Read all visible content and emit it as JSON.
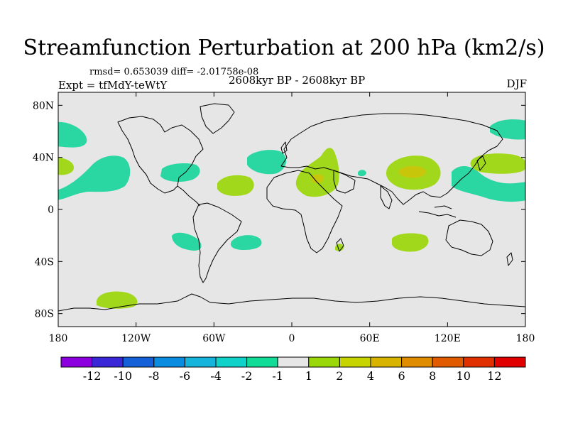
{
  "title": "Streamfunction Perturbation at 200 hPa (km2/s)",
  "stats_line": "rmsd= 0.653039 diff= -2.01758e-08",
  "experiment": "Expt = tfMdY-teWtY",
  "period": "2608kyr BP - 2608kyr BP",
  "season": "DJF",
  "map": {
    "lat_ticks": [
      {
        "lat": 80,
        "label": "80N"
      },
      {
        "lat": 40,
        "label": "40N"
      },
      {
        "lat": 0,
        "label": "0"
      },
      {
        "lat": -40,
        "label": "40S"
      },
      {
        "lat": -80,
        "label": "80S"
      }
    ],
    "lon_ticks": [
      {
        "lon": -180,
        "label": "180"
      },
      {
        "lon": -120,
        "label": "120W"
      },
      {
        "lon": -60,
        "label": "60W"
      },
      {
        "lon": 0,
        "label": "0"
      },
      {
        "lon": 60,
        "label": "60E"
      },
      {
        "lon": 120,
        "label": "120E"
      },
      {
        "lon": 180,
        "label": "180"
      }
    ]
  },
  "colorbar": {
    "labels": [
      "-12",
      "-10",
      "-8",
      "-6",
      "-4",
      "-2",
      "-1",
      "1",
      "2",
      "4",
      "6",
      "8",
      "10",
      "12"
    ],
    "colors": [
      "#8c00e0",
      "#3a28d8",
      "#1460d8",
      "#0a8ce0",
      "#14b4dc",
      "#10d2c8",
      "#10dc98",
      "#e6e6e6",
      "#9ad80a",
      "#c8d400",
      "#d8b400",
      "#e08c00",
      "#e05a00",
      "#e03000",
      "#e00000"
    ]
  },
  "colors": {
    "background": "#e6e6e6",
    "neg_weak": "#2ad6a2",
    "pos_weak": "#a2d81c",
    "pos_mid": "#c8c60a"
  }
}
